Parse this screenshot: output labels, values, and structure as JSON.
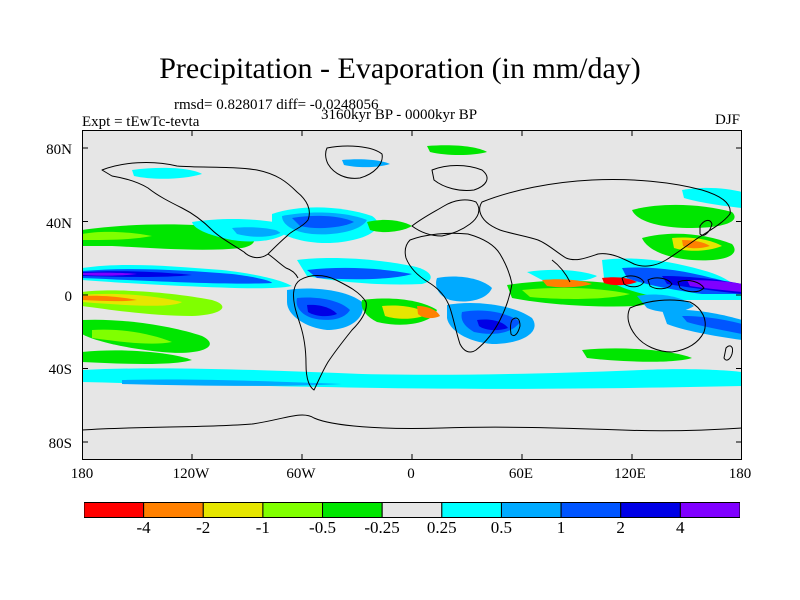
{
  "title": "Precipitation - Evaporation (in mm/day)",
  "stats": "rmsd= 0.828017 diff= -0.0248056",
  "experiment": "Expt = tEwTc-tevta",
  "period": "3160kyr BP - 0000kyr BP",
  "season": "DJF",
  "map": {
    "ocean_color": "#e6e6e6",
    "coastline_color": "#000000",
    "lat_ticks": [
      "80N",
      "40N",
      "0",
      "40S",
      "80S"
    ],
    "lon_ticks": [
      "180",
      "120W",
      "60W",
      "0",
      "60E",
      "120E",
      "180"
    ]
  },
  "colorbar": {
    "colors": [
      "#ff0000",
      "#ff8000",
      "#e6e600",
      "#80ff00",
      "#00e600",
      "#e6e6e6",
      "#00ffff",
      "#00aaff",
      "#0055ff",
      "#0000e6",
      "#8000ff"
    ],
    "labels": [
      "-4",
      "-2",
      "-1",
      "-0.5",
      "-0.25",
      "0.25",
      "0.5",
      "1",
      "2",
      "4"
    ]
  }
}
